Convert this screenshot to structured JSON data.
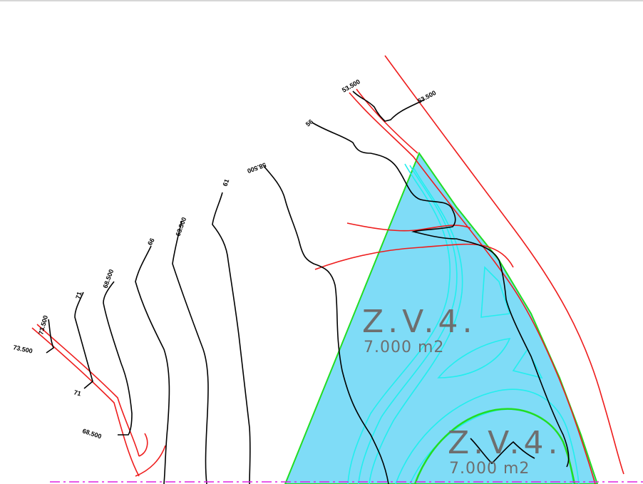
{
  "colors": {
    "contour": "#000000",
    "road_edge": "#ee1c1c",
    "zone_fill": "#7fdcf7",
    "zone_border": "#22dd22",
    "water_contour": "#22eeee",
    "boundary": "#e020e0"
  },
  "contour_labels": {
    "l_53500_a": "53.500",
    "l_53500_b": "53.500",
    "l_56": "56",
    "l_58500": "58.500",
    "l_61": "61",
    "l_63500": "63.500",
    "l_66": "66",
    "l_68500_top": "68.500",
    "l_71_top": "71",
    "l_73500_top": "73.500",
    "l_73500_side": "73.500",
    "l_71_bottom": "71",
    "l_68500_bottom": "68.500"
  },
  "zones": [
    {
      "code": "Z.V.4.",
      "area": "7.000  m2"
    },
    {
      "code": "Z.V.4.",
      "area": "7.000  m2"
    }
  ]
}
